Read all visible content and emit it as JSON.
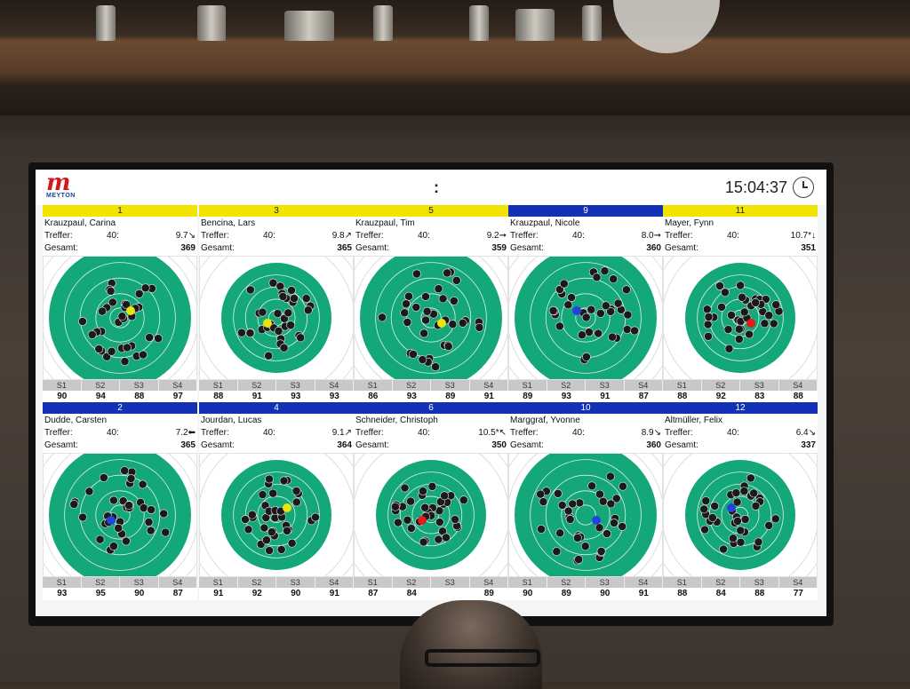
{
  "header": {
    "logo_text": "MEYTON",
    "separator": ":",
    "time": "15:04:37"
  },
  "labels": {
    "hits": "Treffer:",
    "total": "Gesamt:"
  },
  "series_labels": [
    "S1",
    "S2",
    "S3",
    "S4"
  ],
  "colors": {
    "target_green": "#14a77a",
    "lane_yellow": "#f2e400",
    "lane_blue": "#1231b4"
  },
  "shooters": [
    {
      "lane": "1",
      "lane_color": "yellow",
      "name": "Krauzpaul, Carina",
      "hits": "40:",
      "last": "9.7↘",
      "total": "369",
      "scores": [
        "90",
        "94",
        "88",
        "97"
      ]
    },
    {
      "lane": "3",
      "lane_color": "yellow",
      "name": "Bencina, Lars",
      "hits": "40:",
      "last": "9.8↗",
      "total": "365",
      "scores": [
        "88",
        "91",
        "93",
        "93"
      ]
    },
    {
      "lane": "5",
      "lane_color": "yellow",
      "name": "Krauzpaul, Tim",
      "hits": "40:",
      "last": "9.2➞",
      "total": "359",
      "scores": [
        "86",
        "93",
        "89",
        "91"
      ]
    },
    {
      "lane": "9",
      "lane_color": "blue",
      "name": "Krauzpaul, Nicole",
      "hits": "40:",
      "last": "8.0➞",
      "total": "360",
      "scores": [
        "89",
        "93",
        "91",
        "87"
      ]
    },
    {
      "lane": "11",
      "lane_color": "yellow",
      "name": "Mayer, Fynn",
      "hits": "40:",
      "last": "10.7*↓",
      "total": "351",
      "scores": [
        "88",
        "92",
        "83",
        "88"
      ]
    },
    {
      "lane": "2",
      "lane_color": "blue",
      "name": "Dudde, Carsten",
      "hits": "40:",
      "last": "7.2⬅",
      "total": "365",
      "scores": [
        "93",
        "95",
        "90",
        "87"
      ]
    },
    {
      "lane": "4",
      "lane_color": "blue",
      "name": "Jourdan, Lucas",
      "hits": "40:",
      "last": "9.1↗",
      "total": "364",
      "scores": [
        "91",
        "92",
        "90",
        "91"
      ]
    },
    {
      "lane": "6",
      "lane_color": "blue",
      "name": "Schneider, Christoph",
      "hits": "40:",
      "last": "10.5*↖",
      "total": "350",
      "scores": [
        "87",
        "84",
        "",
        "89"
      ]
    },
    {
      "lane": "10",
      "lane_color": "blue",
      "name": "Marggraf, Yvonne",
      "hits": "40:",
      "last": "8.9↘",
      "total": "360",
      "scores": [
        "90",
        "89",
        "90",
        "91"
      ]
    },
    {
      "lane": "12",
      "lane_color": "blue",
      "name": "Altmüller, Felix",
      "hits": "40:",
      "last": "6.4↘",
      "total": "337",
      "scores": [
        "88",
        "84",
        "88",
        "77"
      ]
    }
  ]
}
